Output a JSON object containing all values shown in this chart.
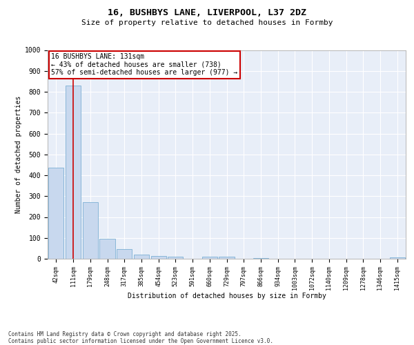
{
  "title1": "16, BUSHBYS LANE, LIVERPOOL, L37 2DZ",
  "title2": "Size of property relative to detached houses in Formby",
  "xlabel": "Distribution of detached houses by size in Formby",
  "ylabel": "Number of detached properties",
  "bar_labels": [
    "42sqm",
    "111sqm",
    "179sqm",
    "248sqm",
    "317sqm",
    "385sqm",
    "454sqm",
    "523sqm",
    "591sqm",
    "660sqm",
    "729sqm",
    "797sqm",
    "866sqm",
    "934sqm",
    "1003sqm",
    "1072sqm",
    "1140sqm",
    "1209sqm",
    "1278sqm",
    "1346sqm",
    "1415sqm"
  ],
  "bar_values": [
    435,
    830,
    270,
    95,
    47,
    20,
    14,
    10,
    0,
    9,
    9,
    0,
    2,
    0,
    0,
    0,
    0,
    0,
    0,
    0,
    7
  ],
  "bar_color": "#c8d8ee",
  "bar_edge_color": "#7bafd4",
  "vline_x": 1.0,
  "vline_color": "#cc0000",
  "ylim": [
    0,
    1000
  ],
  "yticks": [
    0,
    100,
    200,
    300,
    400,
    500,
    600,
    700,
    800,
    900,
    1000
  ],
  "annotation_text": "16 BUSHBYS LANE: 131sqm\n← 43% of detached houses are smaller (738)\n57% of semi-detached houses are larger (977) →",
  "annotation_box_color": "#ffffff",
  "annotation_border_color": "#cc0000",
  "footer_text": "Contains HM Land Registry data © Crown copyright and database right 2025.\nContains public sector information licensed under the Open Government Licence v3.0.",
  "background_color": "#e8eef8",
  "grid_color": "#ffffff",
  "fig_bg_color": "#ffffff",
  "title_fontsize": 9.5,
  "subtitle_fontsize": 8,
  "tick_fontsize": 6,
  "label_fontsize": 7,
  "annot_fontsize": 7
}
